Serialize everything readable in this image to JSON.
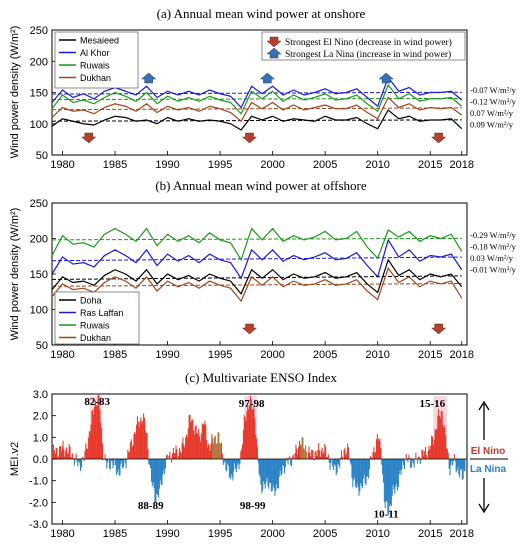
{
  "chart_data": [
    {
      "type": "line",
      "title": "(a)  Annual mean wind power at onshore",
      "ylabel": "Wind power density (W/m²)",
      "ylim": [
        50,
        250
      ],
      "yticks": [
        50,
        100,
        150,
        200,
        250
      ],
      "xlim": [
        1979,
        2018.5
      ],
      "xticks": [
        1980,
        1985,
        1990,
        1995,
        2000,
        2005,
        2010,
        2015,
        2018
      ],
      "x": [
        1979,
        1980,
        1981,
        1982,
        1983,
        1984,
        1985,
        1986,
        1987,
        1988,
        1989,
        1990,
        1991,
        1992,
        1993,
        1994,
        1995,
        1996,
        1997,
        1998,
        1999,
        2000,
        2001,
        2002,
        2003,
        2004,
        2005,
        2006,
        2007,
        2008,
        2009,
        2010,
        2011,
        2012,
        2013,
        2014,
        2015,
        2016,
        2017,
        2018
      ],
      "series": [
        {
          "name": "Mesaieed",
          "color": "#000000",
          "values": [
            96,
            108,
            104,
            100,
            98,
            106,
            112,
            110,
            104,
            106,
            100,
            110,
            104,
            108,
            104,
            106,
            104,
            100,
            90,
            112,
            106,
            112,
            104,
            108,
            106,
            104,
            112,
            106,
            106,
            110,
            100,
            92,
            122,
            108,
            112,
            104,
            106,
            106,
            108,
            92
          ]
        },
        {
          "name": "Al Khor",
          "color": "#1a1adb",
          "values": [
            134,
            154,
            142,
            148,
            140,
            152,
            158,
            152,
            146,
            160,
            142,
            152,
            146,
            152,
            146,
            154,
            148,
            144,
            126,
            160,
            148,
            160,
            146,
            154,
            146,
            150,
            156,
            148,
            150,
            156,
            142,
            128,
            174,
            152,
            158,
            146,
            150,
            150,
            152,
            138
          ]
        },
        {
          "name": "Ruwais",
          "color": "#1b9a1b",
          "values": [
            124,
            146,
            134,
            138,
            132,
            142,
            150,
            144,
            136,
            150,
            132,
            144,
            136,
            142,
            136,
            144,
            138,
            134,
            116,
            152,
            140,
            152,
            136,
            146,
            138,
            142,
            148,
            138,
            140,
            146,
            132,
            120,
            162,
            140,
            148,
            136,
            140,
            140,
            142,
            128
          ]
        },
        {
          "name": "Dukhan",
          "color": "#a0461e",
          "values": [
            110,
            126,
            120,
            122,
            116,
            126,
            132,
            128,
            120,
            132,
            118,
            128,
            122,
            126,
            120,
            128,
            124,
            118,
            104,
            134,
            124,
            134,
            122,
            130,
            122,
            126,
            130,
            124,
            124,
            130,
            118,
            108,
            142,
            126,
            132,
            122,
            126,
            124,
            126,
            114
          ]
        }
      ],
      "trend_labels": [
        "-0.07 W/m²/y",
        "-0.12 W/m²/y",
        "0.07 W/m²/y",
        "0.09 W/m²/y"
      ],
      "event_legend": {
        "el_nino": "Strongest El Nino  (decrease in wind power)",
        "la_nina": "Strongest La Nina  (increase in wind power)"
      },
      "el_nino_years": [
        1982.5,
        1997.8,
        2015.8
      ],
      "la_nina_years": [
        1988.2,
        1999.5,
        2010.8
      ],
      "legend_position": "top-left"
    },
    {
      "type": "line",
      "title": "(b)  Annual mean wind power at offshore",
      "ylabel": "Wind power density (W/m²)",
      "ylim": [
        50,
        250
      ],
      "yticks": [
        50,
        100,
        150,
        200,
        250
      ],
      "xlim": [
        1979,
        2018.5
      ],
      "xticks": [
        1980,
        1985,
        1990,
        1995,
        2000,
        2005,
        2010,
        2015,
        2018
      ],
      "x": [
        1979,
        1980,
        1981,
        1982,
        1983,
        1984,
        1985,
        1986,
        1987,
        1988,
        1989,
        1990,
        1991,
        1992,
        1993,
        1994,
        1995,
        1996,
        1997,
        1998,
        1999,
        2000,
        2001,
        2002,
        2003,
        2004,
        2005,
        2006,
        2007,
        2008,
        2009,
        2010,
        2011,
        2012,
        2013,
        2014,
        2015,
        2016,
        2017,
        2018
      ],
      "series": [
        {
          "name": "Doha",
          "color": "#000000",
          "values": [
            128,
            146,
            138,
            140,
            134,
            148,
            156,
            150,
            140,
            156,
            136,
            150,
            142,
            148,
            140,
            150,
            144,
            140,
            122,
            156,
            144,
            156,
            142,
            150,
            144,
            146,
            152,
            144,
            146,
            152,
            136,
            124,
            170,
            148,
            156,
            142,
            150,
            146,
            150,
            132
          ]
        },
        {
          "name": "Ras Laffan",
          "color": "#1a1adb",
          "values": [
            150,
            174,
            164,
            166,
            160,
            176,
            184,
            176,
            166,
            184,
            162,
            178,
            168,
            176,
            166,
            178,
            170,
            166,
            144,
            184,
            170,
            184,
            168,
            176,
            170,
            174,
            180,
            170,
            172,
            180,
            162,
            146,
            198,
            174,
            184,
            168,
            176,
            174,
            178,
            156
          ]
        },
        {
          "name": "Ruwais",
          "color": "#1b9a1b",
          "values": [
            176,
            204,
            192,
            194,
            188,
            206,
            214,
            206,
            196,
            214,
            190,
            206,
            196,
            204,
            194,
            208,
            198,
            194,
            170,
            214,
            198,
            214,
            196,
            204,
            198,
            202,
            210,
            198,
            200,
            210,
            188,
            172,
            212,
            202,
            210,
            196,
            204,
            200,
            206,
            182
          ]
        },
        {
          "name": "Dukhan",
          "color": "#a0461e",
          "values": [
            118,
            136,
            128,
            130,
            124,
            138,
            146,
            140,
            130,
            146,
            126,
            140,
            132,
            138,
            130,
            140,
            134,
            130,
            112,
            146,
            134,
            146,
            132,
            140,
            134,
            136,
            142,
            134,
            136,
            142,
            126,
            114,
            158,
            138,
            146,
            132,
            140,
            136,
            140,
            116
          ]
        }
      ],
      "trend_labels": [
        "-0.29 W/m²/y",
        "-0.18 W/m²/y",
        "0.03 W/m²/y",
        "-0.01 W/m²/y"
      ],
      "el_nino_years": [
        1982.5,
        1997.8,
        2015.8
      ],
      "legend_position": "bottom-left"
    },
    {
      "type": "bar",
      "title": "(c)  Multivariate ENSO Index",
      "ylabel": "MEI.v2",
      "ylim": [
        -3.0,
        3.0
      ],
      "yticks": [
        "-3.0",
        "-2.0",
        "-1.0",
        "0.0",
        "1.0",
        "2.0",
        "3.0"
      ],
      "xlim": [
        1979,
        2018.5
      ],
      "xticks": [
        1980,
        1985,
        1990,
        1995,
        2000,
        2005,
        2010,
        2015,
        2018
      ],
      "anchors": [
        [
          1979.0,
          0.3
        ],
        [
          1979.5,
          0.4
        ],
        [
          1980.0,
          0.5
        ],
        [
          1980.5,
          0.4
        ],
        [
          1981.0,
          0.1
        ],
        [
          1981.5,
          -0.3
        ],
        [
          1982.0,
          0.0
        ],
        [
          1982.5,
          1.2
        ],
        [
          1983.0,
          2.5
        ],
        [
          1983.4,
          2.9
        ],
        [
          1983.8,
          0.4
        ],
        [
          1984.2,
          -0.4
        ],
        [
          1984.6,
          -0.1
        ],
        [
          1985.2,
          -0.6
        ],
        [
          1985.8,
          -0.3
        ],
        [
          1986.4,
          0.5
        ],
        [
          1987.0,
          1.5
        ],
        [
          1987.6,
          2.0
        ],
        [
          1988.0,
          1.0
        ],
        [
          1988.4,
          -1.0
        ],
        [
          1988.8,
          -1.8
        ],
        [
          1989.2,
          -1.5
        ],
        [
          1989.6,
          -0.5
        ],
        [
          1990.0,
          0.1
        ],
        [
          1990.6,
          0.3
        ],
        [
          1991.2,
          0.4
        ],
        [
          1991.6,
          0.8
        ],
        [
          1992.1,
          1.9
        ],
        [
          1992.5,
          1.5
        ],
        [
          1993.0,
          1.0
        ],
        [
          1993.4,
          1.8
        ],
        [
          1993.8,
          0.6
        ],
        [
          1994.4,
          0.9
        ],
        [
          1994.8,
          1.1
        ],
        [
          1995.1,
          0.4
        ],
        [
          1995.5,
          -0.4
        ],
        [
          1996.0,
          -0.8
        ],
        [
          1996.6,
          -0.4
        ],
        [
          1997.0,
          0.3
        ],
        [
          1997.3,
          2.0
        ],
        [
          1997.8,
          2.6
        ],
        [
          1998.2,
          2.4
        ],
        [
          1998.5,
          0.2
        ],
        [
          1998.8,
          -1.2
        ],
        [
          1999.2,
          -1.3
        ],
        [
          1999.6,
          -1.0
        ],
        [
          2000.0,
          -1.6
        ],
        [
          2000.6,
          -1.0
        ],
        [
          2001.0,
          -0.3
        ],
        [
          2001.6,
          -0.1
        ],
        [
          2002.2,
          0.3
        ],
        [
          2002.6,
          0.9
        ],
        [
          2003.0,
          0.5
        ],
        [
          2003.6,
          0.2
        ],
        [
          2004.2,
          0.3
        ],
        [
          2004.8,
          0.5
        ],
        [
          2005.4,
          -0.1
        ],
        [
          2005.8,
          -0.5
        ],
        [
          2006.3,
          -0.3
        ],
        [
          2006.8,
          0.5
        ],
        [
          2007.2,
          0.3
        ],
        [
          2007.6,
          -1.0
        ],
        [
          2008.0,
          -1.4
        ],
        [
          2008.5,
          -1.2
        ],
        [
          2009.0,
          -0.8
        ],
        [
          2009.5,
          0.3
        ],
        [
          2010.0,
          1.0
        ],
        [
          2010.3,
          0.4
        ],
        [
          2010.6,
          -2.1
        ],
        [
          2011.0,
          -2.4
        ],
        [
          2011.4,
          -1.6
        ],
        [
          2011.8,
          -1.2
        ],
        [
          2012.2,
          -0.6
        ],
        [
          2012.6,
          0.1
        ],
        [
          2013.0,
          -0.2
        ],
        [
          2013.6,
          -0.1
        ],
        [
          2014.2,
          0.2
        ],
        [
          2014.8,
          0.4
        ],
        [
          2015.3,
          1.0
        ],
        [
          2015.7,
          1.9
        ],
        [
          2016.1,
          2.2
        ],
        [
          2016.5,
          0.6
        ],
        [
          2016.8,
          -0.4
        ],
        [
          2017.2,
          -0.1
        ],
        [
          2017.7,
          -0.6
        ],
        [
          2018.0,
          -0.9
        ],
        [
          2018.4,
          -0.3
        ]
      ],
      "annotations": [
        {
          "text": "82-83",
          "x": 1983.3,
          "y": 2.5
        },
        {
          "text": "88-89",
          "x": 1988.4,
          "y": -2.3
        },
        {
          "text": "97-98",
          "x": 1998.0,
          "y": 2.4
        },
        {
          "text": "98-99",
          "x": 1998.1,
          "y": -2.3
        },
        {
          "text": "10-11",
          "x": 2010.8,
          "y": -2.7
        },
        {
          "text": "15-16",
          "x": 2015.2,
          "y": 2.4
        }
      ],
      "side_labels": {
        "el_nino": "El Nino",
        "la_nina": "La Nina"
      },
      "colors": {
        "positive": "#e8392c",
        "negative": "#2b83c6",
        "highlight": "#f2b6c6",
        "tan": "#b5773f"
      }
    }
  ]
}
